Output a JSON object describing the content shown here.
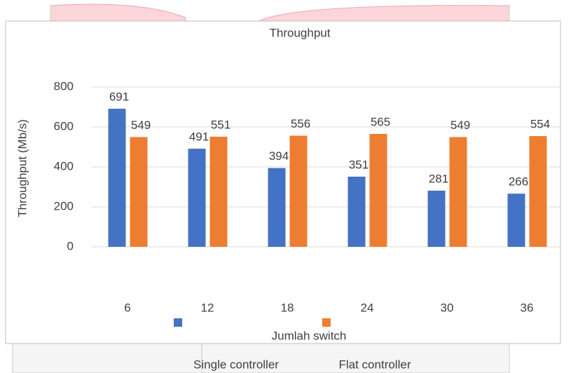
{
  "chart_data": {
    "type": "bar",
    "title": "Throughput",
    "x_label": "Jumlah switch",
    "y_label": "Throughput (Mb/s)",
    "categories": [
      "6",
      "12",
      "18",
      "24",
      "30",
      "36"
    ],
    "series": [
      {
        "name": "Single controller",
        "color": "#4472c4",
        "values": [
          691,
          491,
          394,
          351,
          281,
          266
        ]
      },
      {
        "name": "Flat controller",
        "color": "#ed7d31",
        "values": [
          549,
          551,
          556,
          565,
          549,
          554
        ]
      }
    ],
    "ylim": [
      0,
      800
    ],
    "yticks": [
      0,
      200,
      400,
      600,
      800
    ],
    "grid": true
  }
}
